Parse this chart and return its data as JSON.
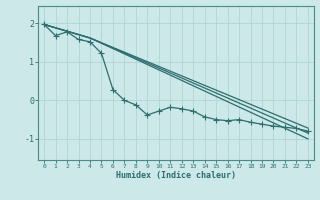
{
  "bg_color": "#cce8e8",
  "line_color": "#2d6e6e",
  "grid_color": "#b0d4d4",
  "spine_color": "#4a8a8a",
  "xlabel": "Humidex (Indice chaleur)",
  "xlim": [
    -0.5,
    23.5
  ],
  "ylim": [
    -1.55,
    2.45
  ],
  "yticks": [
    -1,
    0,
    1,
    2
  ],
  "xticks": [
    0,
    1,
    2,
    3,
    4,
    5,
    6,
    7,
    8,
    9,
    10,
    11,
    12,
    13,
    14,
    15,
    16,
    17,
    18,
    19,
    20,
    21,
    22,
    23
  ],
  "zigzag_x": [
    0,
    1,
    2,
    3,
    4,
    5,
    6,
    7,
    8,
    9,
    10,
    11,
    12,
    13,
    14,
    15,
    16,
    17,
    18,
    19,
    20,
    21,
    22,
    23
  ],
  "zigzag_y": [
    1.97,
    1.68,
    1.78,
    1.58,
    1.52,
    1.22,
    0.28,
    0.0,
    -0.12,
    -0.38,
    -0.28,
    -0.18,
    -0.22,
    -0.28,
    -0.43,
    -0.5,
    -0.53,
    -0.5,
    -0.57,
    -0.62,
    -0.67,
    -0.7,
    -0.73,
    -0.8
  ],
  "line1_x": [
    0,
    4,
    23
  ],
  "line1_y": [
    1.97,
    1.62,
    -0.72
  ],
  "line2_x": [
    0,
    4,
    23
  ],
  "line2_y": [
    1.97,
    1.62,
    -0.85
  ],
  "line3_x": [
    0,
    4,
    23
  ],
  "line3_y": [
    1.97,
    1.62,
    -1.0
  ]
}
